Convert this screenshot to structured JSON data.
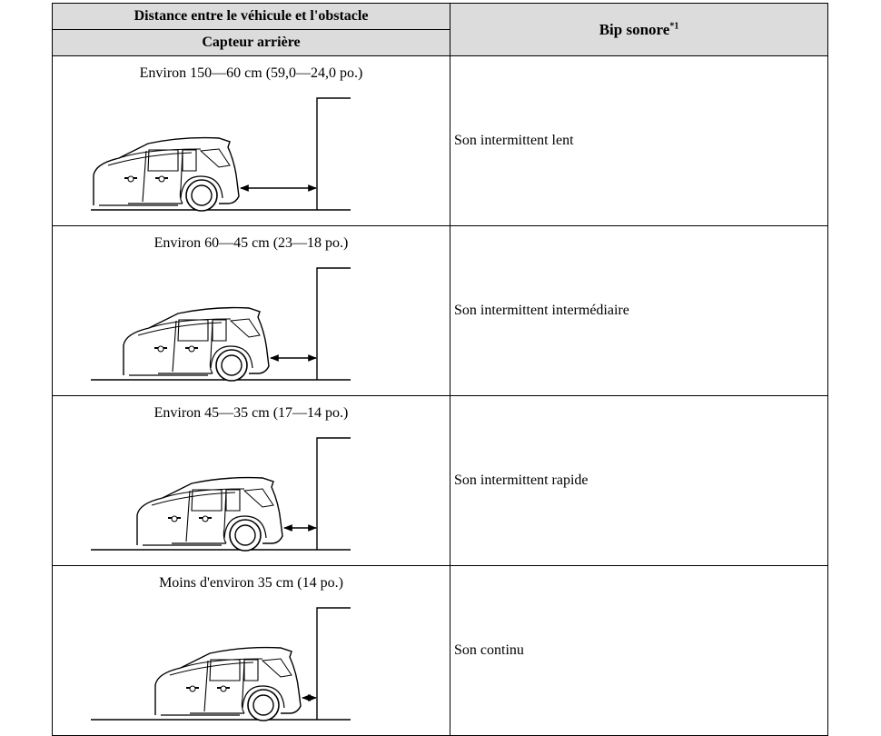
{
  "header": {
    "distance": "Distance entre le véhicule et l'obstacle",
    "sensor": "Capteur arrière",
    "beep": "Bip sonore",
    "beep_note": "*1"
  },
  "rows": [
    {
      "distance": "Environ 150—60 cm (59,0—24,0 po.)",
      "sound": "Son intermittent lent"
    },
    {
      "distance": "Environ 60—45 cm (23—18 po.)",
      "sound": "Son intermittent intermédiaire"
    },
    {
      "distance": "Environ 45—35 cm (17—14 po.)",
      "sound": "Son intermittent rapide"
    },
    {
      "distance": "Moins d'environ 35 cm (14 po.)",
      "sound": "Son continu"
    }
  ]
}
